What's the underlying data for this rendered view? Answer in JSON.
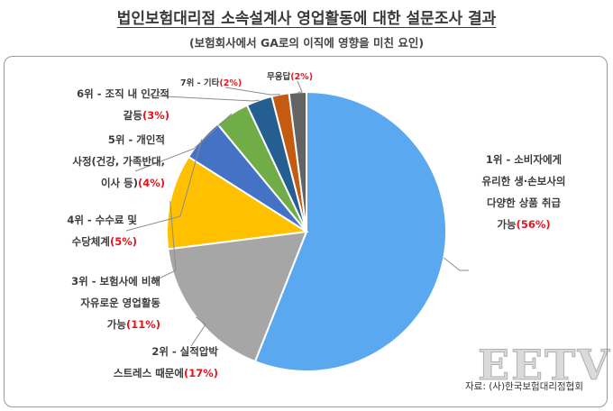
{
  "chart_data": {
    "type": "pie",
    "title": "법인보험대리점 소속설계사 영업활동에 대한 설문조사 결과",
    "subtitle": "(보험회사에서 GA로의 이직에 영향을 미친 요인)",
    "slices": [
      {
        "lines": [
          "1위 - 소비자에게",
          "유리한 생·손보사의",
          "다양한 상품 취급",
          "가능"
        ],
        "pct_text": "(56%)",
        "value": 56,
        "color": "#5aa8ef"
      },
      {
        "lines": [
          "2위 - 실적압박",
          "스트레스 때문에"
        ],
        "pct_text": "(17%)",
        "value": 17,
        "color": "#a6a6a6"
      },
      {
        "lines": [
          "3위 - 보험사에 비해",
          "자유로운 영업활동",
          "가능"
        ],
        "pct_text": "(11%)",
        "value": 11,
        "color": "#ffc000"
      },
      {
        "lines": [
          "4위 - 수수료 및",
          "수당체계"
        ],
        "pct_text": "(5%)",
        "value": 5,
        "color": "#4472c4"
      },
      {
        "lines": [
          "5위 - 개인적",
          "사정(건강, 가족반대,",
          "이사 등)"
        ],
        "pct_text": "(4%)",
        "value": 4,
        "color": "#70ad47"
      },
      {
        "lines": [
          "6위 - 조직 내 인간적",
          "갈등"
        ],
        "pct_text": "(3%)",
        "value": 3,
        "color": "#255e91"
      },
      {
        "lines": [
          "7위 - 기타"
        ],
        "pct_text": "(2%)",
        "value": 2,
        "color": "#c55a11"
      },
      {
        "lines": [
          "무응답"
        ],
        "pct_text": "(2%)",
        "value": 2,
        "color": "#636363"
      }
    ]
  },
  "source": "자료: (사)한국보험대리점협회",
  "watermark": "EETV"
}
